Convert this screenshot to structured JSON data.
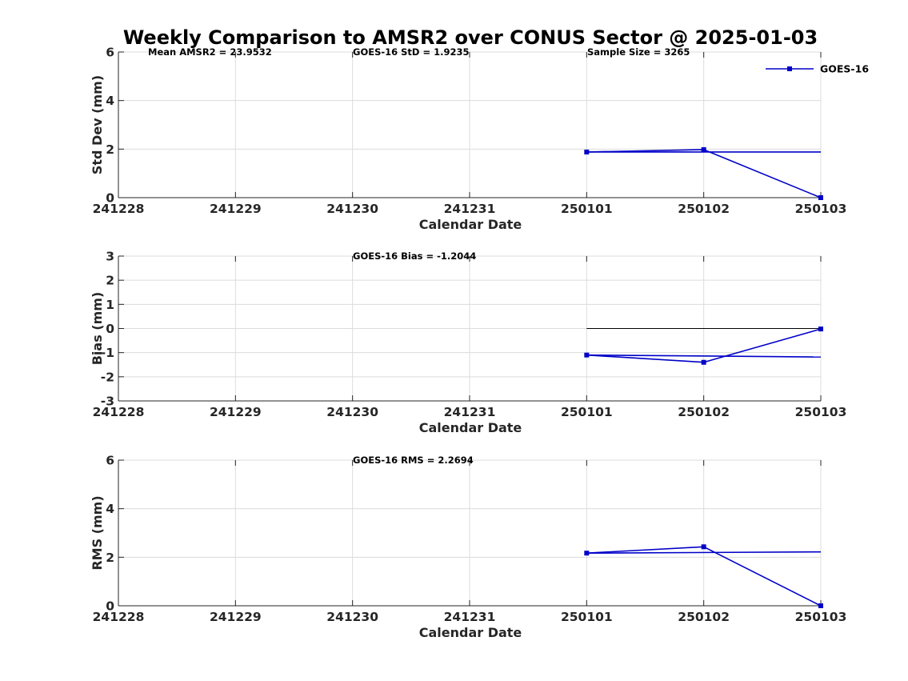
{
  "figure": {
    "title": "Weekly Comparison to AMSR2 over CONUS Sector @ 2025-01-03",
    "legend_label": "GOES-16"
  },
  "colors": {
    "series": "#0000c8",
    "zero_line": "#000000",
    "grid": "#dcdcdc",
    "axis": "#262626"
  },
  "chart_data": [
    {
      "type": "line",
      "title": "",
      "xlabel": "Calendar Date",
      "ylabel": "Std Dev (mm)",
      "x_ticks": [
        "241228",
        "241229",
        "241230",
        "241231",
        "250101",
        "250102",
        "250103"
      ],
      "xlim": [
        "241228",
        "250103"
      ],
      "ylim": [
        0,
        6
      ],
      "y_ticks": [
        "0",
        "2",
        "4",
        "6"
      ],
      "grid": true,
      "legend": "top-right",
      "annotations": [
        "Mean AMSR2 = 23.9532",
        "GOES-16 StD = 1.9235",
        "Sample Size = 3265"
      ],
      "series": [
        {
          "name": "GOES-16",
          "x": [
            "250101",
            "250102",
            "250103"
          ],
          "values": [
            1.88,
            1.98,
            0.0
          ]
        }
      ],
      "reference_line": {
        "kind": "mean",
        "x": [
          "250101",
          "250103"
        ],
        "values": [
          1.88,
          1.88
        ]
      },
      "zero_line": false
    },
    {
      "type": "line",
      "title": "",
      "xlabel": "Calendar Date",
      "ylabel": "Bias (mm)",
      "x_ticks": [
        "241228",
        "241229",
        "241230",
        "241231",
        "250101",
        "250102",
        "250103"
      ],
      "xlim": [
        "241228",
        "250103"
      ],
      "ylim": [
        -3,
        3
      ],
      "y_ticks": [
        "-3",
        "-2",
        "-1",
        "0",
        "1",
        "2",
        "3"
      ],
      "grid": true,
      "annotations": [
        "GOES-16 Bias  = -1.2044"
      ],
      "series": [
        {
          "name": "GOES-16",
          "x": [
            "250101",
            "250102",
            "250103"
          ],
          "values": [
            -1.1,
            -1.4,
            -0.02
          ]
        }
      ],
      "reference_line": {
        "kind": "mean",
        "x": [
          "250101",
          "250103"
        ],
        "values": [
          -1.1,
          -1.18
        ]
      },
      "zero_line": true
    },
    {
      "type": "line",
      "title": "",
      "xlabel": "Calendar Date",
      "ylabel": "RMS (mm)",
      "x_ticks": [
        "241228",
        "241229",
        "241230",
        "241231",
        "250101",
        "250102",
        "250103"
      ],
      "xlim": [
        "241228",
        "250103"
      ],
      "ylim": [
        0,
        6
      ],
      "y_ticks": [
        "0",
        "2",
        "4",
        "6"
      ],
      "grid": true,
      "annotations": [
        "GOES-16 RMS = 2.2694"
      ],
      "series": [
        {
          "name": "GOES-16",
          "x": [
            "250101",
            "250102",
            "250103"
          ],
          "values": [
            2.17,
            2.43,
            0.0
          ]
        }
      ],
      "reference_line": {
        "kind": "mean",
        "x": [
          "250101",
          "250103"
        ],
        "values": [
          2.17,
          2.22
        ]
      },
      "zero_line": false
    }
  ]
}
